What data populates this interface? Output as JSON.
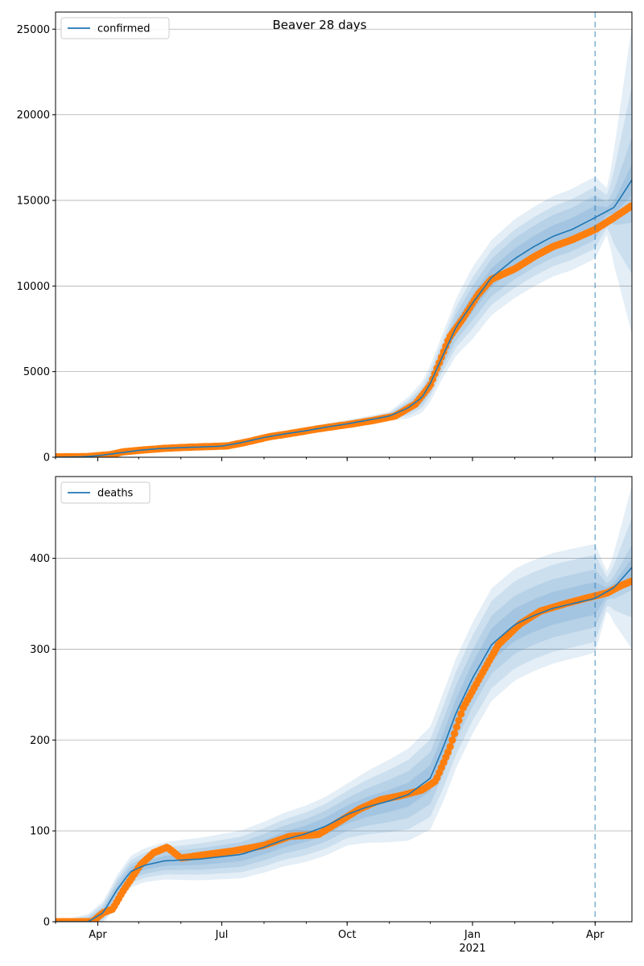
{
  "figure": {
    "title": "Beaver 28 days"
  },
  "colors": {
    "model": "#1f77b4",
    "observed": "#ff7f0e",
    "band": "#1f77b4",
    "grid": "#b0b0b0",
    "forecast_line": "#1f77b4"
  },
  "x_axis": {
    "start_date": "2020-03-01",
    "end_date": "2021-04-28",
    "forecast_start": "2021-04-01",
    "ticks": [
      {
        "date": "2020-04-01",
        "label": "Apr"
      },
      {
        "date": "2020-07-01",
        "label": "Jul"
      },
      {
        "date": "2020-10-01",
        "label": "Oct"
      },
      {
        "date": "2021-01-01",
        "label": "Jan"
      },
      {
        "date": "2021-04-01",
        "label": "Apr"
      }
    ],
    "year_label": "2021"
  },
  "chart_data": [
    {
      "type": "line",
      "legend": "confirmed",
      "legend_position": "top-left",
      "ylim": [
        0,
        26000
      ],
      "yticks": [
        0,
        5000,
        10000,
        15000,
        20000,
        25000
      ],
      "grid": true,
      "model": [
        [
          "2020-03-01",
          0
        ],
        [
          "2020-03-20",
          20
        ],
        [
          "2020-04-01",
          90
        ],
        [
          "2020-04-15",
          230
        ],
        [
          "2020-05-01",
          400
        ],
        [
          "2020-05-15",
          500
        ],
        [
          "2020-06-01",
          560
        ],
        [
          "2020-06-15",
          600
        ],
        [
          "2020-07-01",
          650
        ],
        [
          "2020-07-15",
          850
        ],
        [
          "2020-08-01",
          1150
        ],
        [
          "2020-08-15",
          1350
        ],
        [
          "2020-09-01",
          1550
        ],
        [
          "2020-09-15",
          1750
        ],
        [
          "2020-10-01",
          1950
        ],
        [
          "2020-10-15",
          2150
        ],
        [
          "2020-11-01",
          2400
        ],
        [
          "2020-11-15",
          2900
        ],
        [
          "2020-11-25",
          3500
        ],
        [
          "2020-12-01",
          4300
        ],
        [
          "2020-12-10",
          5900
        ],
        [
          "2020-12-20",
          7600
        ],
        [
          "2021-01-01",
          9000
        ],
        [
          "2021-01-15",
          10500
        ],
        [
          "2021-02-01",
          11600
        ],
        [
          "2021-02-15",
          12300
        ],
        [
          "2021-03-01",
          12900
        ],
        [
          "2021-03-15",
          13300
        ],
        [
          "2021-04-01",
          14000
        ],
        [
          "2021-04-15",
          14600
        ],
        [
          "2021-04-28",
          16200
        ]
      ],
      "band_half_widths": [
        [
          "2020-03-01",
          0,
          0,
          0,
          0
        ],
        [
          "2020-11-01",
          60,
          120,
          180,
          260
        ],
        [
          "2020-12-10",
          300,
          600,
          900,
          1300
        ],
        [
          "2021-01-01",
          500,
          1000,
          1500,
          2100
        ],
        [
          "2021-02-01",
          600,
          1200,
          1700,
          2300
        ],
        [
          "2021-04-01",
          700,
          1300,
          1800,
          2400
        ],
        [
          "2021-04-10",
          200,
          500,
          900,
          1300
        ],
        [
          "2021-04-28",
          900,
          2500,
          5500,
          9000
        ]
      ],
      "observed": [
        [
          "2020-03-01",
          20
        ],
        [
          "2020-03-25",
          40
        ],
        [
          "2020-04-10",
          150
        ],
        [
          "2020-04-20",
          320
        ],
        [
          "2020-05-05",
          430
        ],
        [
          "2020-05-20",
          520
        ],
        [
          "2020-06-05",
          580
        ],
        [
          "2020-06-20",
          620
        ],
        [
          "2020-07-05",
          660
        ],
        [
          "2020-07-20",
          900
        ],
        [
          "2020-08-05",
          1200
        ],
        [
          "2020-08-20",
          1380
        ],
        [
          "2020-09-05",
          1600
        ],
        [
          "2020-09-20",
          1780
        ],
        [
          "2020-10-05",
          1950
        ],
        [
          "2020-10-20",
          2150
        ],
        [
          "2020-11-05",
          2400
        ],
        [
          "2020-11-20",
          3100
        ],
        [
          "2020-12-01",
          4200
        ],
        [
          "2020-12-08",
          5600
        ],
        [
          "2020-12-15",
          7000
        ],
        [
          "2020-12-25",
          8100
        ],
        [
          "2021-01-05",
          9500
        ],
        [
          "2021-01-15",
          10400
        ],
        [
          "2021-02-01",
          11000
        ],
        [
          "2021-02-15",
          11700
        ],
        [
          "2021-03-01",
          12300
        ],
        [
          "2021-03-15",
          12700
        ],
        [
          "2021-04-01",
          13300
        ],
        [
          "2021-04-15",
          14000
        ],
        [
          "2021-04-28",
          14700
        ]
      ]
    },
    {
      "type": "line",
      "legend": "deaths",
      "legend_position": "top-left",
      "ylim": [
        0,
        490
      ],
      "yticks": [
        0,
        100,
        200,
        300,
        400
      ],
      "grid": true,
      "model": [
        [
          "2020-03-01",
          0
        ],
        [
          "2020-03-25",
          0
        ],
        [
          "2020-04-05",
          10
        ],
        [
          "2020-04-15",
          35
        ],
        [
          "2020-04-25",
          55
        ],
        [
          "2020-05-05",
          62
        ],
        [
          "2020-05-20",
          67
        ],
        [
          "2020-06-15",
          69
        ],
        [
          "2020-07-15",
          74
        ],
        [
          "2020-08-01",
          82
        ],
        [
          "2020-08-15",
          90
        ],
        [
          "2020-09-01",
          97
        ],
        [
          "2020-09-15",
          105
        ],
        [
          "2020-10-01",
          118
        ],
        [
          "2020-10-15",
          126
        ],
        [
          "2020-11-01",
          133
        ],
        [
          "2020-11-15",
          140
        ],
        [
          "2020-12-01",
          158
        ],
        [
          "2020-12-10",
          190
        ],
        [
          "2020-12-20",
          230
        ],
        [
          "2021-01-01",
          268
        ],
        [
          "2021-01-15",
          305
        ],
        [
          "2021-02-01",
          327
        ],
        [
          "2021-02-15",
          337
        ],
        [
          "2021-03-01",
          345
        ],
        [
          "2021-03-15",
          350
        ],
        [
          "2021-04-01",
          356
        ],
        [
          "2021-04-15",
          368
        ],
        [
          "2021-04-28",
          390
        ]
      ],
      "band_half_widths": [
        [
          "2020-03-01",
          0,
          0,
          0,
          0
        ],
        [
          "2020-04-15",
          4,
          8,
          12,
          16
        ],
        [
          "2020-06-01",
          6,
          11,
          16,
          22
        ],
        [
          "2020-10-01",
          10,
          18,
          26,
          34
        ],
        [
          "2020-12-10",
          15,
          30,
          45,
          60
        ],
        [
          "2021-01-15",
          18,
          32,
          48,
          62
        ],
        [
          "2021-04-01",
          18,
          32,
          48,
          60
        ],
        [
          "2021-04-10",
          4,
          8,
          14,
          20
        ],
        [
          "2021-04-28",
          10,
          25,
          55,
          90
        ]
      ],
      "observed": [
        [
          "2020-03-01",
          0
        ],
        [
          "2020-03-28",
          0
        ],
        [
          "2020-04-05",
          10
        ],
        [
          "2020-04-12",
          14
        ],
        [
          "2020-04-20",
          35
        ],
        [
          "2020-04-25",
          46
        ],
        [
          "2020-05-02",
          62
        ],
        [
          "2020-05-12",
          76
        ],
        [
          "2020-05-22",
          82
        ],
        [
          "2020-06-01",
          70
        ],
        [
          "2020-06-20",
          74
        ],
        [
          "2020-07-10",
          78
        ],
        [
          "2020-08-01",
          84
        ],
        [
          "2020-08-20",
          94
        ],
        [
          "2020-09-10",
          96
        ],
        [
          "2020-09-25",
          110
        ],
        [
          "2020-10-10",
          124
        ],
        [
          "2020-10-25",
          134
        ],
        [
          "2020-11-10",
          139
        ],
        [
          "2020-11-25",
          145
        ],
        [
          "2020-12-05",
          155
        ],
        [
          "2020-12-15",
          190
        ],
        [
          "2020-12-25",
          235
        ],
        [
          "2021-01-05",
          265
        ],
        [
          "2021-01-20",
          305
        ],
        [
          "2021-02-05",
          328
        ],
        [
          "2021-02-20",
          342
        ],
        [
          "2021-03-10",
          350
        ],
        [
          "2021-03-25",
          356
        ],
        [
          "2021-04-10",
          362
        ],
        [
          "2021-04-20",
          370
        ],
        [
          "2021-04-28",
          375
        ]
      ]
    }
  ]
}
